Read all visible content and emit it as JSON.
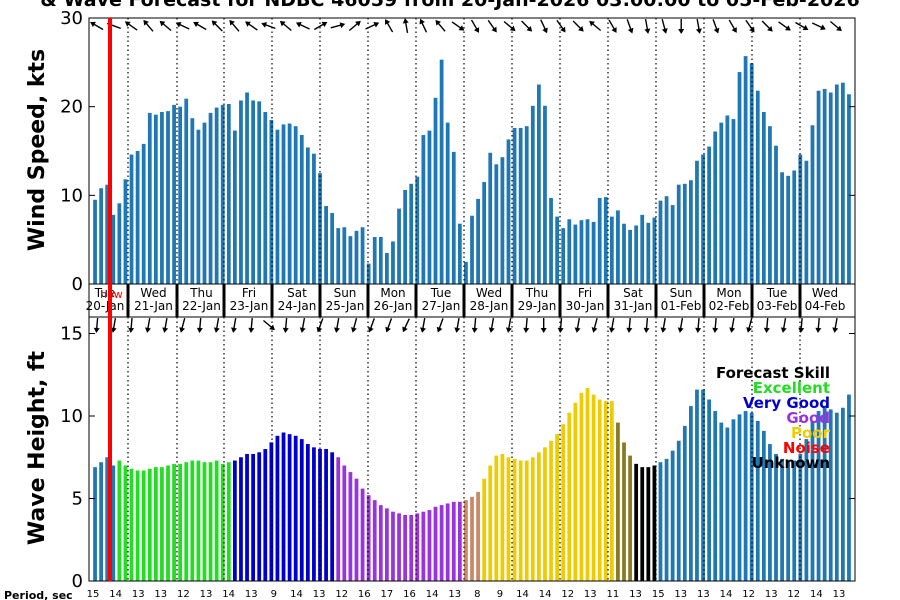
{
  "title": "& Wave Forecast for NDBC 46059 from 20-Jan-2026 03:00:00 to 05-Feb-2026",
  "now_label": "now",
  "period_label": "Period, sec",
  "colors": {
    "bar_default": "#1f77b4",
    "now_line": "#ff0000",
    "skill": {
      "Excellent": "#22dd22",
      "Very Good": "#0000cc",
      "Good": "#9933dd",
      "Poor": "#eecc00",
      "Noise": "#ff0000",
      "Unknown": "#000000"
    }
  },
  "chart_data": [
    {
      "type": "bar",
      "ylabel": "Wind Speed, kts",
      "ylim": [
        0,
        30
      ],
      "yticks": [
        0,
        10,
        20,
        30
      ],
      "grid": "vertical dotted at day boundaries",
      "values": [
        9.5,
        10.8,
        11.2,
        7.8,
        9.1,
        11.8,
        14.6,
        15.0,
        15.8,
        19.3,
        19.1,
        19.4,
        19.5,
        20.2,
        20.0,
        20.9,
        18.7,
        17.4,
        18.2,
        19.3,
        19.9,
        20.2,
        20.3,
        17.3,
        20.7,
        21.6,
        20.7,
        20.6,
        19.4,
        18.5,
        17.4,
        18.0,
        18.1,
        17.8,
        16.8,
        15.4,
        14.7,
        12.5,
        8.8,
        8.0,
        6.3,
        6.4,
        5.4,
        6.0,
        6.4,
        2.3,
        5.3,
        5.3,
        3.5,
        4.8,
        8.5,
        10.6,
        11.3,
        12.1,
        16.8,
        17.3,
        21.0,
        25.3,
        18.2,
        14.9,
        6.8,
        2.5,
        7.7,
        9.6,
        11.5,
        14.8,
        13.5,
        14.3,
        16.3,
        17.6,
        17.6,
        17.8,
        20.1,
        22.5,
        20.1,
        9.7,
        7.6,
        6.3,
        7.3,
        6.7,
        7.2,
        7.3,
        7.0,
        9.7,
        9.8,
        7.6,
        8.3,
        6.8,
        6.1,
        6.6,
        7.8,
        6.9,
        7.5,
        9.4,
        9.9,
        8.9,
        11.2,
        11.3,
        11.7,
        13.9,
        14.6,
        15.5,
        17.2,
        18.2,
        19.0,
        18.6,
        23.9,
        25.7,
        24.9,
        21.8,
        19.4,
        17.8,
        15.6,
        12.6,
        12.2,
        12.8,
        14.6,
        13.9,
        17.9,
        21.8,
        22.0,
        21.6,
        22.5,
        22.7,
        21.4
      ]
    },
    {
      "type": "bar",
      "ylabel": "Wave Height, ft",
      "ylim": [
        0,
        16
      ],
      "yticks": [
        0,
        5,
        10,
        15
      ],
      "grid": "vertical dotted at day boundaries",
      "legend": {
        "title": "Forecast Skill",
        "placement": "right",
        "entries": [
          "Excellent",
          "Very Good",
          "Good",
          "Poor",
          "Noise",
          "Unknown"
        ]
      },
      "values": [
        6.9,
        7.2,
        7.5,
        7.0,
        7.3,
        7.0,
        6.8,
        6.7,
        6.7,
        6.8,
        6.9,
        6.9,
        7.0,
        7.1,
        7.1,
        7.2,
        7.3,
        7.3,
        7.2,
        7.2,
        7.3,
        7.1,
        7.2,
        7.3,
        7.5,
        7.7,
        7.7,
        7.8,
        8.0,
        8.4,
        8.8,
        9.0,
        8.9,
        8.8,
        8.6,
        8.3,
        8.1,
        8.0,
        8.0,
        7.8,
        7.5,
        7.0,
        6.6,
        6.2,
        5.6,
        5.2,
        4.9,
        4.6,
        4.4,
        4.2,
        4.1,
        4.0,
        4.0,
        4.1,
        4.2,
        4.3,
        4.5,
        4.6,
        4.7,
        4.8,
        4.8,
        4.9,
        5.1,
        5.4,
        6.2,
        7.0,
        7.6,
        7.7,
        7.5,
        7.4,
        7.3,
        7.3,
        7.5,
        7.8,
        8.1,
        8.5,
        8.9,
        9.5,
        10.2,
        10.8,
        11.4,
        11.7,
        11.3,
        11.0,
        10.9,
        10.9,
        9.6,
        8.4,
        7.6,
        7.1,
        6.9,
        6.9,
        7.0,
        7.2,
        7.4,
        7.9,
        8.5,
        9.4,
        10.6,
        11.6,
        11.6,
        11.0,
        10.3,
        9.6,
        9.3,
        9.8,
        10.1,
        10.3,
        10.2,
        9.7,
        9.1,
        8.3,
        7.7,
        7.4,
        7.3,
        7.3,
        7.7,
        8.6,
        9.7,
        10.3,
        10.6,
        10.4,
        10.2,
        10.5,
        11.3
      ],
      "skill": [
        "U",
        "U",
        "U",
        "U",
        "E",
        "E",
        "E",
        "E",
        "E",
        "E",
        "E",
        "E",
        "E",
        "E",
        "E",
        "E",
        "E",
        "E",
        "E",
        "E",
        "E",
        "E",
        "E",
        "V",
        "V",
        "V",
        "V",
        "V",
        "V",
        "V",
        "V",
        "V",
        "V",
        "V",
        "V",
        "V",
        "V",
        "V",
        "V",
        "V",
        "G",
        "G",
        "G",
        "G",
        "G",
        "G",
        "G",
        "G",
        "G",
        "G",
        "G",
        "G",
        "G",
        "G",
        "G",
        "G",
        "G",
        "G",
        "G",
        "G",
        "G",
        "GP",
        "GP",
        "GP",
        "P",
        "P",
        "P",
        "P",
        "P",
        "P",
        "P",
        "P",
        "P",
        "P",
        "P",
        "P",
        "P",
        "P",
        "P",
        "P",
        "P",
        "P",
        "P",
        "P",
        "P",
        "P",
        "PU",
        "PU",
        "PU",
        "K",
        "K",
        "K",
        "K",
        "U",
        "U",
        "U",
        "U",
        "U",
        "U",
        "U",
        "U",
        "U",
        "U",
        "U",
        "U",
        "U",
        "U",
        "U",
        "U",
        "U",
        "U",
        "U",
        "U",
        "U",
        "U",
        "U",
        "U",
        "U",
        "U",
        "U",
        "U",
        "U",
        "U",
        "U",
        "U"
      ]
    }
  ],
  "days": [
    {
      "dow": "Tue",
      "date": "20-Jan"
    },
    {
      "dow": "Wed",
      "date": "21-Jan"
    },
    {
      "dow": "Thu",
      "date": "22-Jan"
    },
    {
      "dow": "Fri",
      "date": "23-Jan"
    },
    {
      "dow": "Sat",
      "date": "24-Jan"
    },
    {
      "dow": "Sun",
      "date": "25-Jan"
    },
    {
      "dow": "Mon",
      "date": "26-Jan"
    },
    {
      "dow": "Tue",
      "date": "27-Jan"
    },
    {
      "dow": "Wed",
      "date": "28-Jan"
    },
    {
      "dow": "Thu",
      "date": "29-Jan"
    },
    {
      "dow": "Fri",
      "date": "30-Jan"
    },
    {
      "dow": "Sat",
      "date": "31-Jan"
    },
    {
      "dow": "Sun",
      "date": "01-Feb"
    },
    {
      "dow": "Mon",
      "date": "02-Feb"
    },
    {
      "dow": "Tue",
      "date": "03-Feb"
    },
    {
      "dow": "Wed",
      "date": "04-Feb"
    }
  ],
  "periods": [
    "15",
    "14",
    "13",
    "13",
    "12",
    "13",
    "14",
    "13",
    "9",
    "14",
    "13",
    "12",
    "16",
    "17",
    "16",
    "14",
    "13",
    "8",
    "9",
    "14",
    "14",
    "12",
    "13",
    "11",
    "13",
    "15",
    "13",
    "13",
    "14",
    "12",
    "13",
    "12",
    "14",
    "13"
  ],
  "wind_arrow_deg": [
    210,
    200,
    215,
    230,
    220,
    205,
    210,
    225,
    230,
    215,
    200,
    220,
    205,
    330,
    345,
    320,
    335,
    240,
    260,
    245,
    230,
    35,
    60,
    55,
    40,
    45,
    65,
    55,
    45,
    220,
    60,
    70,
    80,
    75,
    90,
    80,
    70,
    60,
    55,
    45,
    35,
    30,
    25,
    40
  ],
  "wave_arrow_deg": [
    95,
    100,
    95,
    100,
    100,
    105,
    95,
    100,
    100,
    95,
    40,
    95,
    100,
    110,
    100,
    105,
    110,
    110,
    115,
    100,
    110,
    100,
    95,
    100,
    100,
    95,
    90,
    95,
    100,
    105,
    100,
    95,
    95,
    100,
    100,
    95,
    95,
    100,
    105,
    95,
    100,
    95,
    95,
    100
  ]
}
